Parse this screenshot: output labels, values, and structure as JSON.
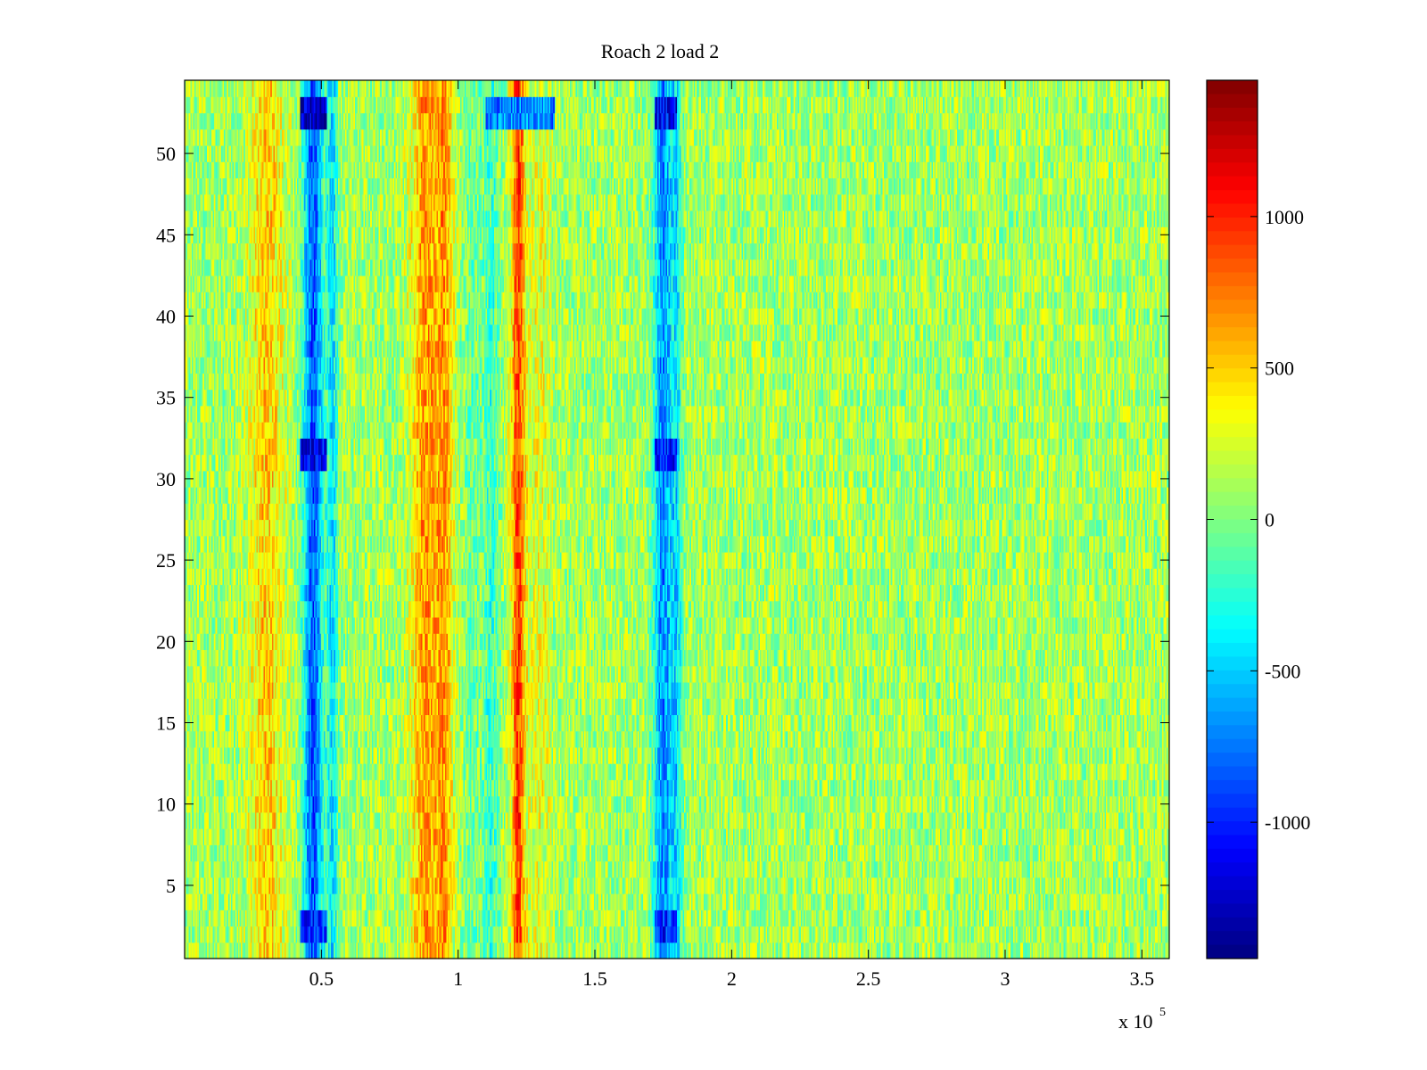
{
  "chart_data": {
    "type": "heatmap",
    "title": "Roach 2 load 2",
    "xlabel": "",
    "ylabel": "",
    "x_multiplier_label": {
      "base": "x 10",
      "exponent": "5"
    },
    "xlim": [
      0,
      3.6
    ],
    "ylim": [
      0.5,
      54.5
    ],
    "n_rows": 54,
    "x_ticks": [
      {
        "value": 0.5,
        "label": "0.5"
      },
      {
        "value": 1.0,
        "label": "1"
      },
      {
        "value": 1.5,
        "label": "1.5"
      },
      {
        "value": 2.0,
        "label": "2"
      },
      {
        "value": 2.5,
        "label": "2.5"
      },
      {
        "value": 3.0,
        "label": "3"
      },
      {
        "value": 3.5,
        "label": "3.5"
      }
    ],
    "y_ticks": [
      {
        "value": 5,
        "label": "5"
      },
      {
        "value": 10,
        "label": "10"
      },
      {
        "value": 15,
        "label": "15"
      },
      {
        "value": 20,
        "label": "20"
      },
      {
        "value": 25,
        "label": "25"
      },
      {
        "value": 30,
        "label": "30"
      },
      {
        "value": 35,
        "label": "35"
      },
      {
        "value": 40,
        "label": "40"
      },
      {
        "value": 45,
        "label": "45"
      },
      {
        "value": 50,
        "label": "50"
      }
    ],
    "colorbar": {
      "colormap": "jet",
      "range": [
        -1450,
        1450
      ],
      "ticks": [
        {
          "value": 1000,
          "label": "1000"
        },
        {
          "value": 500,
          "label": "500"
        },
        {
          "value": 0,
          "label": "0"
        },
        {
          "value": -500,
          "label": "-500"
        },
        {
          "value": -1000,
          "label": "-1000"
        }
      ]
    },
    "background_level": 100,
    "noise_amplitude": 300,
    "column_features": [
      {
        "x_center": 0.3,
        "half_width": 0.06,
        "level": 400
      },
      {
        "x_center": 0.47,
        "half_width": 0.035,
        "level": -950
      },
      {
        "x_center": 0.54,
        "half_width": 0.02,
        "level": -500
      },
      {
        "x_center": 0.88,
        "half_width": 0.05,
        "level": 550
      },
      {
        "x_center": 0.95,
        "half_width": 0.03,
        "level": 500
      },
      {
        "x_center": 1.05,
        "half_width": 0.03,
        "level": -150
      },
      {
        "x_center": 1.12,
        "half_width": 0.03,
        "level": -300
      },
      {
        "x_center": 1.22,
        "half_width": 0.025,
        "level": 800
      },
      {
        "x_center": 1.3,
        "half_width": 0.04,
        "level": 200
      },
      {
        "x_center": 1.75,
        "half_width": 0.035,
        "level": -800
      },
      {
        "x_center": 1.8,
        "half_width": 0.02,
        "level": -450
      }
    ],
    "row_features": [
      {
        "rows": [
          52,
          53
        ],
        "x_range": [
          0.42,
          0.52
        ],
        "level": -1250
      },
      {
        "rows": [
          52,
          53
        ],
        "x_range": [
          1.1,
          1.35
        ],
        "level": -700
      },
      {
        "rows": [
          52,
          53
        ],
        "x_range": [
          1.72,
          1.8
        ],
        "level": -1100
      },
      {
        "rows": [
          31,
          32
        ],
        "x_range": [
          0.42,
          0.52
        ],
        "level": -1100
      },
      {
        "rows": [
          31,
          32
        ],
        "x_range": [
          1.72,
          1.8
        ],
        "level": -1000
      },
      {
        "rows": [
          2,
          3
        ],
        "x_range": [
          0.42,
          0.52
        ],
        "level": -1000
      },
      {
        "rows": [
          2,
          3
        ],
        "x_range": [
          1.72,
          1.8
        ],
        "level": -1000
      }
    ]
  }
}
